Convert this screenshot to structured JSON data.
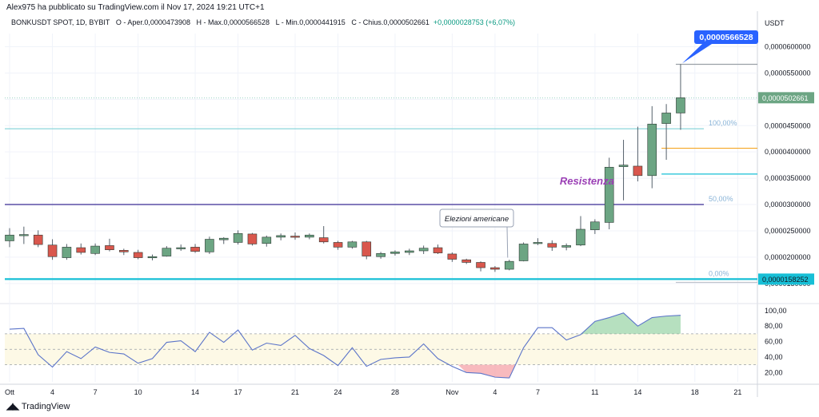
{
  "publisher": "Alex975 ha pubblicato su TradingView.com il Nov 17, 2024 19:21 UTC+1",
  "info": {
    "symbol": "BONKUSDT SPOT, 1D, BYBIT",
    "open": "O - Aper.0,0000473908",
    "high": "H - Max.0,0000566528",
    "low": "L - Min.0,0000441915",
    "close": "C - Chius.0,0000502661",
    "change": "+0,0000028753 (+6,07%)"
  },
  "currency": "USDT",
  "footer": "TradingView",
  "colors": {
    "up": "#6ca583",
    "down": "#d9574d",
    "rsi": "#5b74c9",
    "resistance": "#5a4fa6",
    "cyan": "#17bfd6",
    "orange": "#f5a623",
    "label_blue": "#2962ff",
    "label_green": "#6ca583"
  },
  "chart_data": [
    {
      "type": "candlestick",
      "title": "BONKUSDT SPOT, 1D, BYBIT",
      "ylim": [
        1.3e-05,
        6.25e-05
      ],
      "y_ticks": [
        {
          "v": 1.5e-05,
          "label": "0,0000150000"
        },
        {
          "v": 2e-05,
          "label": "0,0000200000"
        },
        {
          "v": 2.5e-05,
          "label": "0,0000250000"
        },
        {
          "v": 3e-05,
          "label": "0,0000300000"
        },
        {
          "v": 3.5e-05,
          "label": "0,0000350000"
        },
        {
          "v": 4e-05,
          "label": "0,0000400000"
        },
        {
          "v": 4.5e-05,
          "label": "0,0000450000"
        },
        {
          "v": 5e-05,
          "label": "0,0000500000"
        },
        {
          "v": 5.5e-05,
          "label": "0,0000550000"
        },
        {
          "v": 6e-05,
          "label": "0,0000600000"
        }
      ],
      "x_ticks": [
        {
          "day": 0,
          "label": "Ott"
        },
        {
          "day": 3,
          "label": "4"
        },
        {
          "day": 6,
          "label": "7"
        },
        {
          "day": 9,
          "label": "10"
        },
        {
          "day": 13,
          "label": "14"
        },
        {
          "day": 16,
          "label": "17"
        },
        {
          "day": 20,
          "label": "21"
        },
        {
          "day": 23,
          "label": "24"
        },
        {
          "day": 27,
          "label": "28"
        },
        {
          "day": 31,
          "label": "Nov"
        },
        {
          "day": 34,
          "label": "4"
        },
        {
          "day": 37,
          "label": "7"
        },
        {
          "day": 41,
          "label": "11"
        },
        {
          "day": 44,
          "label": "14"
        },
        {
          "day": 48,
          "label": "18"
        },
        {
          "day": 51,
          "label": "21"
        }
      ],
      "candles": [
        {
          "day": 0,
          "o": 2.31e-05,
          "h": 2.55e-05,
          "l": 2.19e-05,
          "c": 2.42e-05
        },
        {
          "day": 1,
          "o": 2.42e-05,
          "h": 2.58e-05,
          "l": 2.25e-05,
          "c": 2.43e-05
        },
        {
          "day": 2,
          "o": 2.42e-05,
          "h": 2.51e-05,
          "l": 2.19e-05,
          "c": 2.24e-05
        },
        {
          "day": 3,
          "o": 2.23e-05,
          "h": 2.34e-05,
          "l": 1.95e-05,
          "c": 2.01e-05
        },
        {
          "day": 4,
          "o": 1.99e-05,
          "h": 2.25e-05,
          "l": 1.95e-05,
          "c": 2.19e-05
        },
        {
          "day": 5,
          "o": 2.18e-05,
          "h": 2.26e-05,
          "l": 2.05e-05,
          "c": 2.09e-05
        },
        {
          "day": 6,
          "o": 2.07e-05,
          "h": 2.26e-05,
          "l": 2.04e-05,
          "c": 2.21e-05
        },
        {
          "day": 7,
          "o": 2.22e-05,
          "h": 2.35e-05,
          "l": 2.11e-05,
          "c": 2.14e-05
        },
        {
          "day": 8,
          "o": 2.13e-05,
          "h": 2.16e-05,
          "l": 2.04e-05,
          "c": 2.1e-05
        },
        {
          "day": 9,
          "o": 2.09e-05,
          "h": 2.14e-05,
          "l": 1.96e-05,
          "c": 1.99e-05
        },
        {
          "day": 10,
          "o": 1.99e-05,
          "h": 2.05e-05,
          "l": 1.94e-05,
          "c": 2.01e-05
        },
        {
          "day": 11,
          "o": 2.02e-05,
          "h": 2.21e-05,
          "l": 2.01e-05,
          "c": 2.17e-05
        },
        {
          "day": 12,
          "o": 2.16e-05,
          "h": 2.24e-05,
          "l": 2.12e-05,
          "c": 2.18e-05
        },
        {
          "day": 13,
          "o": 2.19e-05,
          "h": 2.25e-05,
          "l": 2.08e-05,
          "c": 2.11e-05
        },
        {
          "day": 14,
          "o": 2.1e-05,
          "h": 2.39e-05,
          "l": 2.06e-05,
          "c": 2.34e-05
        },
        {
          "day": 15,
          "o": 2.33e-05,
          "h": 2.38e-05,
          "l": 2.25e-05,
          "c": 2.36e-05
        },
        {
          "day": 16,
          "o": 2.28e-05,
          "h": 2.51e-05,
          "l": 2.24e-05,
          "c": 2.45e-05
        },
        {
          "day": 17,
          "o": 2.44e-05,
          "h": 2.46e-05,
          "l": 2.22e-05,
          "c": 2.25e-05
        },
        {
          "day": 18,
          "o": 2.26e-05,
          "h": 2.41e-05,
          "l": 2.2e-05,
          "c": 2.38e-05
        },
        {
          "day": 19,
          "o": 2.38e-05,
          "h": 2.45e-05,
          "l": 2.32e-05,
          "c": 2.41e-05
        },
        {
          "day": 20,
          "o": 2.4e-05,
          "h": 2.47e-05,
          "l": 2.33e-05,
          "c": 2.38e-05
        },
        {
          "day": 21,
          "o": 2.38e-05,
          "h": 2.45e-05,
          "l": 2.34e-05,
          "c": 2.42e-05
        },
        {
          "day": 22,
          "o": 2.37e-05,
          "h": 2.59e-05,
          "l": 2.26e-05,
          "c": 2.29e-05
        },
        {
          "day": 23,
          "o": 2.28e-05,
          "h": 2.31e-05,
          "l": 2.14e-05,
          "c": 2.19e-05
        },
        {
          "day": 24,
          "o": 2.19e-05,
          "h": 2.31e-05,
          "l": 2.16e-05,
          "c": 2.29e-05
        },
        {
          "day": 25,
          "o": 2.29e-05,
          "h": 2.31e-05,
          "l": 1.96e-05,
          "c": 2.02e-05
        },
        {
          "day": 26,
          "o": 2.01e-05,
          "h": 2.1e-05,
          "l": 1.97e-05,
          "c": 2.07e-05
        },
        {
          "day": 27,
          "o": 2.07e-05,
          "h": 2.13e-05,
          "l": 2.03e-05,
          "c": 2.1e-05
        },
        {
          "day": 28,
          "o": 2.09e-05,
          "h": 2.16e-05,
          "l": 2.04e-05,
          "c": 2.12e-05
        },
        {
          "day": 29,
          "o": 2.12e-05,
          "h": 2.22e-05,
          "l": 2.06e-05,
          "c": 2.17e-05
        },
        {
          "day": 30,
          "o": 2.18e-05,
          "h": 2.24e-05,
          "l": 2.06e-05,
          "c": 2.08e-05
        },
        {
          "day": 31,
          "o": 2.06e-05,
          "h": 2.09e-05,
          "l": 1.91e-05,
          "c": 1.96e-05
        },
        {
          "day": 32,
          "o": 1.95e-05,
          "h": 1.97e-05,
          "l": 1.87e-05,
          "c": 1.9e-05
        },
        {
          "day": 33,
          "o": 1.9e-05,
          "h": 1.92e-05,
          "l": 1.73e-05,
          "c": 1.8e-05
        },
        {
          "day": 34,
          "o": 1.8e-05,
          "h": 1.83e-05,
          "l": 1.72e-05,
          "c": 1.77e-05
        },
        {
          "day": 35,
          "o": 1.77e-05,
          "h": 1.95e-05,
          "l": 1.75e-05,
          "c": 1.92e-05
        },
        {
          "day": 36,
          "o": 1.93e-05,
          "h": 2.28e-05,
          "l": 1.92e-05,
          "c": 2.25e-05
        },
        {
          "day": 37,
          "o": 2.26e-05,
          "h": 2.36e-05,
          "l": 2.23e-05,
          "c": 2.28e-05
        },
        {
          "day": 38,
          "o": 2.26e-05,
          "h": 2.32e-05,
          "l": 2.12e-05,
          "c": 2.19e-05
        },
        {
          "day": 39,
          "o": 2.19e-05,
          "h": 2.26e-05,
          "l": 2.13e-05,
          "c": 2.22e-05
        },
        {
          "day": 40,
          "o": 2.23e-05,
          "h": 2.78e-05,
          "l": 2.21e-05,
          "c": 2.53e-05
        },
        {
          "day": 41,
          "o": 2.52e-05,
          "h": 2.72e-05,
          "l": 2.44e-05,
          "c": 2.67e-05
        },
        {
          "day": 42,
          "o": 2.66e-05,
          "h": 3.89e-05,
          "l": 2.53e-05,
          "c": 3.71e-05
        },
        {
          "day": 43,
          "o": 3.72e-05,
          "h": 4.23e-05,
          "l": 3.08e-05,
          "c": 3.75e-05
        },
        {
          "day": 44,
          "o": 3.73e-05,
          "h": 4.48e-05,
          "l": 3.44e-05,
          "c": 3.55e-05
        },
        {
          "day": 45,
          "o": 3.55e-05,
          "h": 4.87e-05,
          "l": 3.31e-05,
          "c": 4.53e-05
        },
        {
          "day": 46,
          "o": 4.54e-05,
          "h": 4.91e-05,
          "l": 3.85e-05,
          "c": 4.74e-05
        },
        {
          "day": 47,
          "o": 4.74e-05,
          "h": 5.67e-05,
          "l": 4.42e-05,
          "c": 5.03e-05
        }
      ],
      "last_price_label": "0,0000502661",
      "high_label": "0,0000566528",
      "low_label": "0,0000158252",
      "levels": [
        {
          "name": "high-level",
          "v": 5.66528e-05,
          "color": "#9aa0a6",
          "from_day": 47
        },
        {
          "name": "last-price-level",
          "v": 5.02661e-05,
          "color": "#a8d8cc",
          "from_day": 0,
          "dotted": true
        },
        {
          "name": "fib-100-level",
          "v": 4.44e-05,
          "color": "#7fd1d6",
          "from_day": 0
        },
        {
          "name": "orange-level",
          "v": 4.07e-05,
          "color": "#f5a623",
          "from_day": 46
        },
        {
          "name": "cyan-short-level",
          "v": 3.58e-05,
          "color": "#17bfd6",
          "from_day": 46
        },
        {
          "name": "resistance-level",
          "v": 3e-05,
          "color": "#5a4fa6",
          "from_day": 0
        },
        {
          "name": "support-level",
          "v": 1.58252e-05,
          "color": "#17bfd6",
          "from_day": 0,
          "thick": true
        },
        {
          "name": "low-level",
          "v": 1.52e-05,
          "color": "#c0c4cc",
          "from_day": 47
        }
      ],
      "fib_labels": [
        {
          "v": 4.44e-05,
          "label": "100,00%"
        },
        {
          "v": 3e-05,
          "label": "50,00%"
        },
        {
          "v": 1.58252e-05,
          "label": "0,00%"
        }
      ],
      "annotations": [
        {
          "label": "Resistenza",
          "day": 41,
          "v": 3.17e-05
        },
        {
          "label": "Elezioni americane",
          "day": 35,
          "v": 1.9e-05
        }
      ]
    },
    {
      "type": "line",
      "title": "",
      "ylim": [
        10,
        105
      ],
      "y_ticks": [
        {
          "v": 20,
          "label": "20,00"
        },
        {
          "v": 40,
          "label": "40,00"
        },
        {
          "v": 60,
          "label": "60,00"
        },
        {
          "v": 80,
          "label": "80,00"
        },
        {
          "v": 100,
          "label": "100,00"
        }
      ],
      "bands": [
        30,
        50,
        70
      ],
      "series": [
        {
          "values": [
            76,
            77,
            43,
            27,
            47,
            38,
            53,
            46,
            44,
            32,
            38,
            59,
            61,
            47,
            72,
            59,
            75,
            49,
            58,
            55,
            68,
            51,
            42,
            29,
            52,
            28,
            37,
            39,
            40,
            57,
            38,
            28,
            20,
            19,
            14,
            13,
            52,
            78,
            78,
            62,
            69,
            86,
            91,
            97,
            80,
            91,
            93,
            94
          ]
        }
      ]
    }
  ]
}
